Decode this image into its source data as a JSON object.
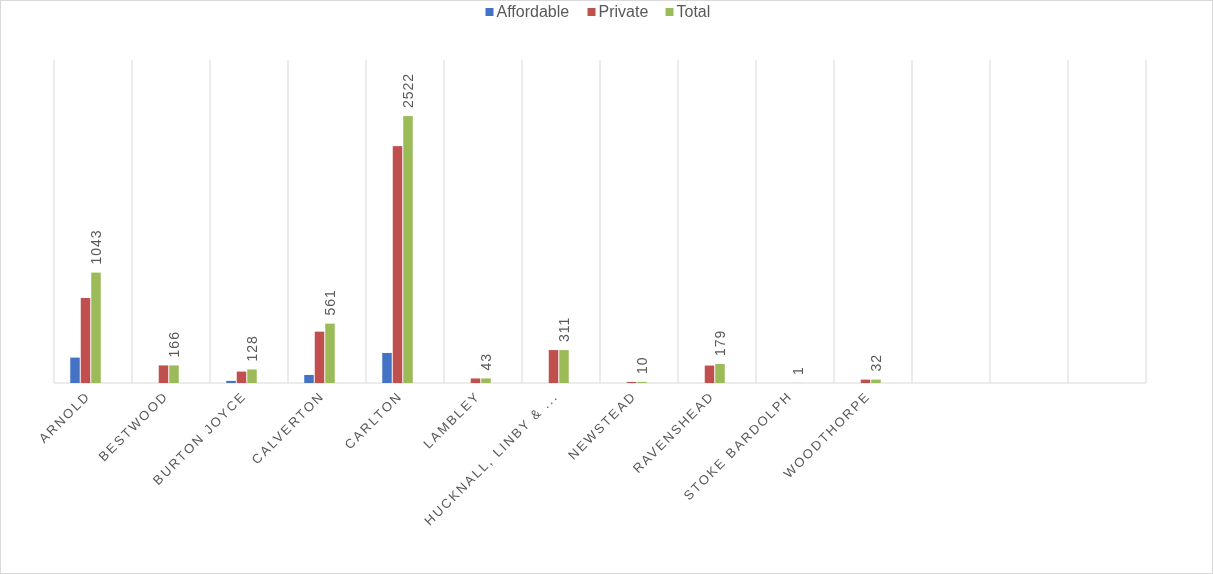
{
  "chart_data": {
    "type": "bar",
    "categories": [
      "ARNOLD",
      "BESTWOOD",
      "BURTON JOYCE",
      "CALVERTON",
      "CARLTON",
      "LAMBLEY",
      "HUCKNALL, LINBY & ...",
      "NEWSTEAD",
      "RAVENSHEAD",
      "STOKE BARDOLPH",
      "WOODTHORPE",
      null,
      null,
      null
    ],
    "series": [
      {
        "name": "Affordable",
        "color": "#4472c4",
        "values": [
          240,
          0,
          20,
          76,
          284,
          0,
          0,
          0,
          0,
          0,
          0,
          null,
          null,
          null
        ]
      },
      {
        "name": "Private",
        "color": "#c0504d",
        "values": [
          803,
          166,
          108,
          485,
          2238,
          43,
          311,
          10,
          165,
          null,
          32,
          null,
          null,
          null
        ]
      },
      {
        "name": "Total",
        "color": "#9bbb59",
        "values": [
          1043,
          166,
          128,
          561,
          2522,
          43,
          311,
          10,
          179,
          1,
          32,
          null,
          null,
          null
        ],
        "value_labels": [
          "1043",
          "166",
          "128",
          "561",
          "2522",
          "43",
          "311",
          "10",
          "179",
          "1",
          "32",
          null,
          null,
          null
        ]
      }
    ],
    "grid": "x",
    "legend": "top"
  }
}
